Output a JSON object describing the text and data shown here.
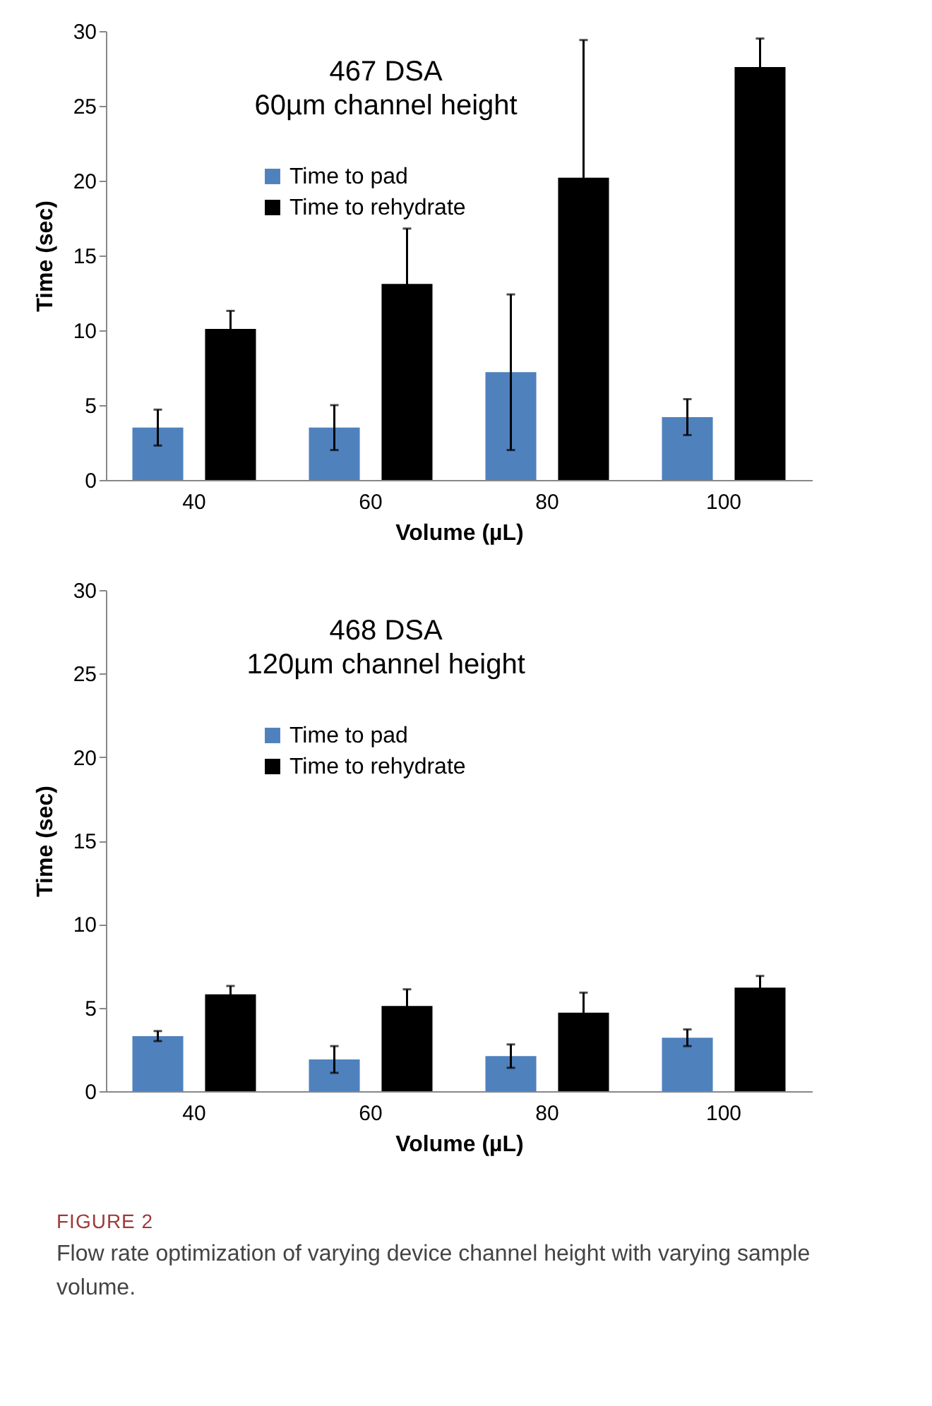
{
  "chart_data": [
    {
      "type": "bar",
      "title": "467 DSA",
      "subtitle": "60µm channel height",
      "xlabel": "Volume (µL)",
      "ylabel": "Time (sec)",
      "categories": [
        "40",
        "60",
        "80",
        "100"
      ],
      "series": [
        {
          "name": "Time to pad",
          "color": "#4f81bd",
          "values": [
            3.5,
            3.5,
            7.2,
            4.2
          ],
          "errors": [
            1.2,
            1.5,
            5.2,
            1.2
          ]
        },
        {
          "name": "Time to rehydrate",
          "color": "#000000",
          "values": [
            10.1,
            13.1,
            20.2,
            27.6
          ],
          "errors": [
            1.2,
            3.7,
            9.2,
            1.9
          ]
        }
      ],
      "ylim": [
        0,
        30
      ],
      "yticks": [
        0,
        5,
        10,
        15,
        20,
        25,
        30
      ],
      "grid": false,
      "legend": "top left"
    },
    {
      "type": "bar",
      "title": "468 DSA",
      "subtitle": "120µm channel height",
      "xlabel": "Volume (µL)",
      "ylabel": "Time (sec)",
      "categories": [
        "40",
        "60",
        "80",
        "100"
      ],
      "series": [
        {
          "name": "Time to pad",
          "color": "#4f81bd",
          "values": [
            3.3,
            1.9,
            2.1,
            3.2
          ],
          "errors": [
            0.3,
            0.8,
            0.7,
            0.5
          ]
        },
        {
          "name": "Time to rehydrate",
          "color": "#000000",
          "values": [
            5.8,
            5.1,
            4.7,
            6.2
          ],
          "errors": [
            0.5,
            1.0,
            1.2,
            0.7
          ]
        }
      ],
      "ylim": [
        0,
        30
      ],
      "yticks": [
        0,
        5,
        10,
        15,
        20,
        25,
        30
      ],
      "grid": false,
      "legend": "top left",
      "annotations": [
        "FIGURE 2",
        "Flow rate optimization of varying device channel height with varying sample volume."
      ]
    }
  ]
}
